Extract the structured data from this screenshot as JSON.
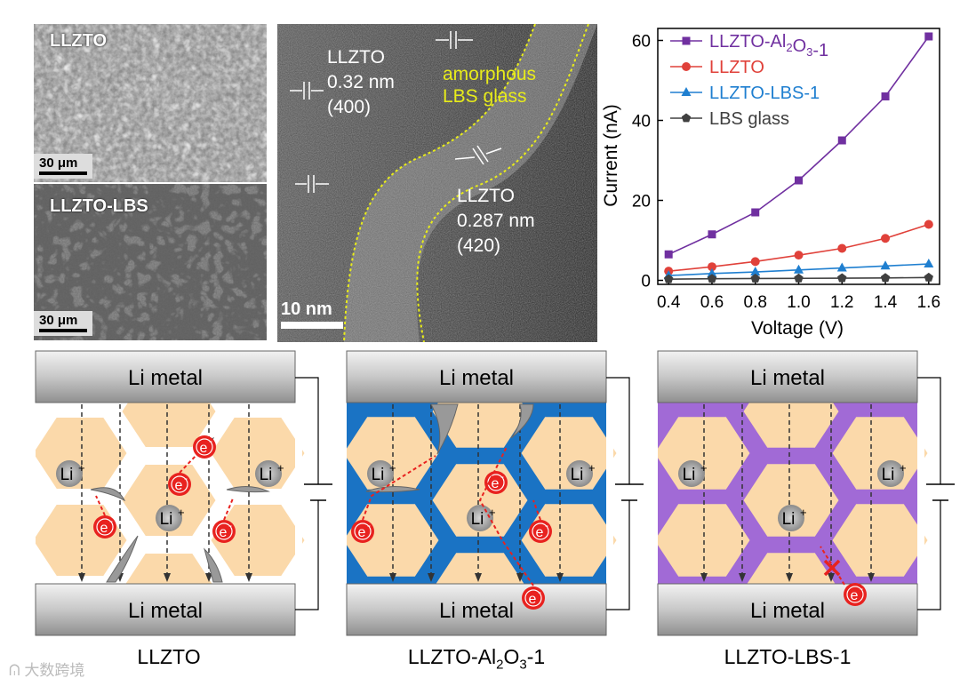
{
  "sem_top": {
    "label": "LLZTO",
    "scale": "30 μm"
  },
  "sem_bottom": {
    "label": "LLZTO-LBS",
    "scale": "30 μm"
  },
  "tem": {
    "left_label": [
      "LLZTO",
      "0.32 nm",
      "(400)"
    ],
    "right_label": [
      "LLZTO",
      "0.287 nm",
      "(420)"
    ],
    "glass_label": [
      "amorphous",
      "LBS glass"
    ],
    "scale": "10 nm"
  },
  "chart_data": {
    "type": "line",
    "xlabel": "Voltage (V)",
    "ylabel": "Current (nA)",
    "x": [
      0.4,
      0.6,
      0.8,
      1.0,
      1.2,
      1.4,
      1.6
    ],
    "xlim": [
      0.35,
      1.65
    ],
    "ylim": [
      -1,
      63
    ],
    "xticks": [
      "0.4",
      "0.6",
      "0.8",
      "1.0",
      "1.2",
      "1.4",
      "1.6"
    ],
    "yticks": [
      "0",
      "20",
      "40",
      "60"
    ],
    "legend_position": "top-left",
    "series": [
      {
        "name": "LLZTO-Al2O3-1",
        "legend_main": "LLZTO-Al",
        "legend_sub": "2",
        "legend_mid": "O",
        "legend_sub2": "3",
        "legend_end": "-1",
        "color": "#7030a0",
        "marker": "square",
        "values": [
          6.5,
          11.5,
          17,
          25,
          35,
          46,
          61
        ]
      },
      {
        "name": "LLZTO",
        "legend_text": "LLZTO",
        "color": "#e0413a",
        "marker": "circle",
        "values": [
          2.3,
          3.4,
          4.7,
          6.3,
          8,
          10.5,
          14
        ]
      },
      {
        "name": "LLZTO-LBS-1",
        "legend_text": "LLZTO-LBS-1",
        "color": "#1f7fd0",
        "marker": "triangle",
        "values": [
          1.2,
          1.7,
          2.1,
          2.6,
          3.1,
          3.6,
          4.1
        ]
      },
      {
        "name": "LBS glass",
        "legend_text": "LBS glass",
        "color": "#404040",
        "marker": "pentagon",
        "values": [
          0.3,
          0.4,
          0.45,
          0.5,
          0.55,
          0.6,
          0.7
        ]
      }
    ]
  },
  "diagrams": {
    "metal_label": "Li metal",
    "li_ion": "Li",
    "li_sup": "+",
    "electron": "e",
    "electron_sup": "-",
    "captions": [
      {
        "main": "LLZTO"
      },
      {
        "main": "LLZTO-Al",
        "sub": "2",
        "mid": "O",
        "sub2": "3",
        "end": "-1"
      },
      {
        "main": "LLZTO-LBS-1"
      }
    ],
    "colors": {
      "grain": "#fbd9aa",
      "al2o3": "#1a73c4",
      "lbs": "#a16ad6",
      "electron": "#e8221f"
    }
  },
  "watermark": "大数跨境"
}
